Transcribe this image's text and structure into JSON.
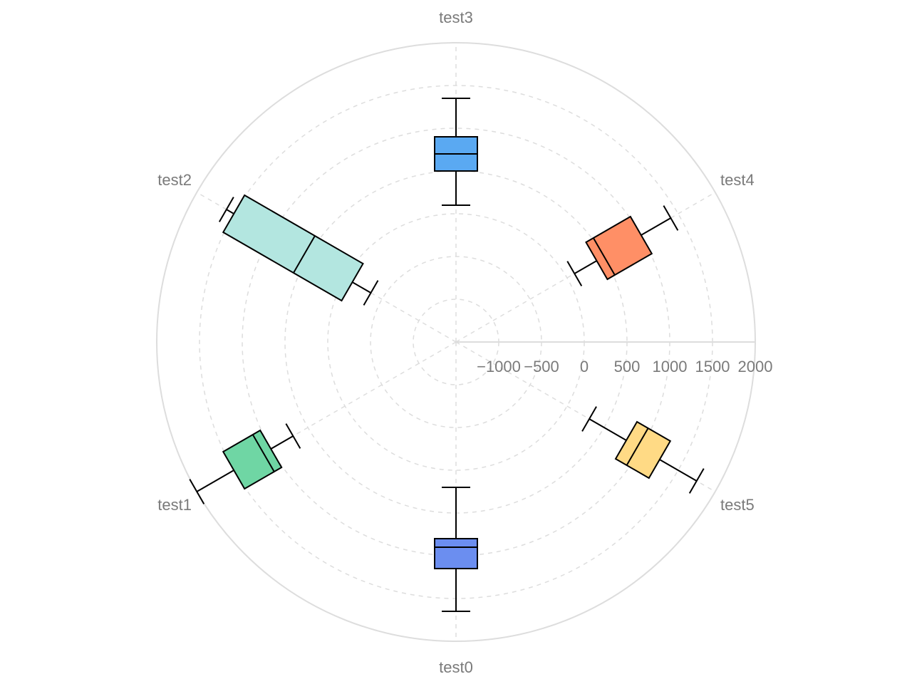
{
  "chart_data": {
    "type": "boxplot",
    "coordinate_system": "polar",
    "radial_axis": {
      "min": -1500,
      "max": 2000,
      "ticks": [
        -1000,
        -500,
        0,
        500,
        1000,
        1500,
        2000
      ],
      "tick_labels": [
        "−1000",
        "−500",
        "0",
        "500",
        "1000",
        "1500",
        "2000"
      ]
    },
    "grid": true,
    "categories": [
      "test0",
      "test1",
      "test2",
      "test3",
      "test4",
      "test5"
    ],
    "boxes": [
      {
        "category": "test0",
        "min": 200,
        "q1": 800,
        "median": 900,
        "q3": 1150,
        "max": 1650,
        "color": "#6b8ef0"
      },
      {
        "category": "test1",
        "min": 700,
        "q1": 1000,
        "median": 1100,
        "q3": 1500,
        "max": 2000,
        "color": "#6fd6a4"
      },
      {
        "category": "test2",
        "min": -350,
        "q1": -100,
        "median": 550,
        "q3": 1500,
        "max": 1600,
        "color": "#b3e6e0"
      },
      {
        "category": "test3",
        "min": 100,
        "q1": 500,
        "median": 700,
        "q3": 900,
        "max": 1350,
        "color": "#5aa9f2"
      },
      {
        "category": "test4",
        "min": 100,
        "q1": 400,
        "median": 500,
        "q3": 1000,
        "max": 1400,
        "color": "#ff8f66"
      },
      {
        "category": "test5",
        "min": 300,
        "q1": 800,
        "median": 950,
        "q3": 1250,
        "max": 1750,
        "color": "#ffda85"
      }
    ]
  }
}
